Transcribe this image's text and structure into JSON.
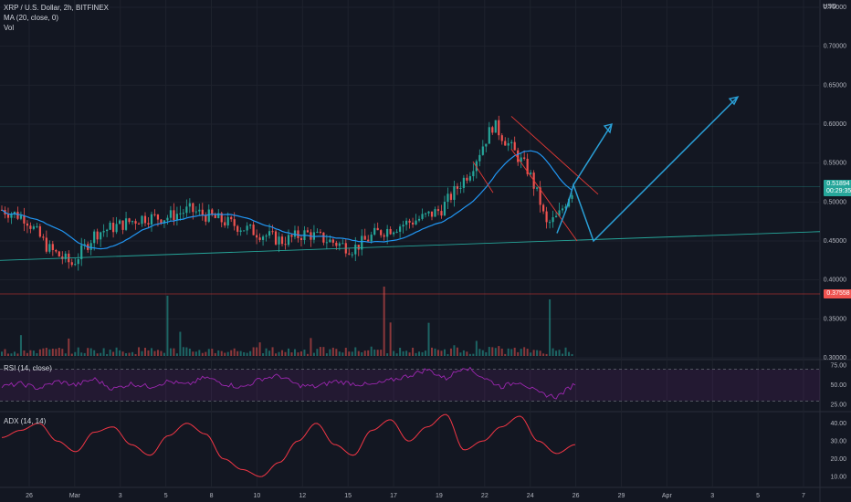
{
  "header": {
    "symbol_line": "XRP / U.S. Dollar, 2h, BITFINEX",
    "ma_line": "MA (20, close, 0)",
    "vol_line": "Vol",
    "rsi_line": "RSI (14, close)",
    "adx_line": "ADX (14, 14)",
    "currency": "USD"
  },
  "badges": {
    "last_price": "0.51894",
    "countdown": "00:29:35",
    "volume_scale": "0.37558"
  },
  "colors": {
    "background": "#131722",
    "up": "#26a69a",
    "down": "#ef5350",
    "ma": "#2196f3",
    "drawing": "#2a9fd6",
    "rsi": "#9c27b0",
    "adx": "#f23645",
    "channel": "#e53935",
    "trendline": "#26a69a"
  },
  "chart_data": [
    {
      "type": "candlestick",
      "title": "XRP / U.S. Dollar, 2h, BITFINEX",
      "ylim": [
        0.3,
        0.75
      ],
      "y_ticks": [
        "0.75000",
        "0.70000",
        "0.65000",
        "0.60000",
        "0.55000",
        "0.50000",
        "0.45000",
        "0.40000",
        "0.35000",
        "0.30000"
      ],
      "x_ticks": [
        "26",
        "Mar",
        "3",
        "5",
        "8",
        "10",
        "12",
        "15",
        "17",
        "19",
        "22",
        "24",
        "26",
        "29",
        "Apr",
        "3",
        "5",
        "7"
      ],
      "ma_period": 20,
      "path_points": [
        [
          0,
          0.49
        ],
        [
          4,
          0.48
        ],
        [
          8,
          0.44
        ],
        [
          12,
          0.42
        ],
        [
          16,
          0.46
        ],
        [
          20,
          0.47
        ],
        [
          24,
          0.48
        ],
        [
          28,
          0.48
        ],
        [
          32,
          0.49
        ],
        [
          36,
          0.48
        ],
        [
          40,
          0.47
        ],
        [
          44,
          0.46
        ],
        [
          48,
          0.45
        ],
        [
          52,
          0.46
        ],
        [
          56,
          0.45
        ],
        [
          60,
          0.44
        ],
        [
          64,
          0.46
        ],
        [
          68,
          0.47
        ],
        [
          72,
          0.48
        ],
        [
          75,
          0.49
        ],
        [
          78,
          0.52
        ],
        [
          80,
          0.54
        ],
        [
          82,
          0.57
        ],
        [
          84,
          0.6
        ],
        [
          86,
          0.58
        ],
        [
          88,
          0.56
        ],
        [
          90,
          0.54
        ],
        [
          92,
          0.5
        ],
        [
          93,
          0.47
        ],
        [
          95,
          0.48
        ],
        [
          97,
          0.51
        ],
        [
          98,
          0.52
        ]
      ],
      "last_price": 0.51894
    },
    {
      "type": "bar",
      "series": [
        {
          "values": [
            0.05,
            0.03,
            0.2,
            0.04,
            0.06,
            0.03,
            0.02,
            0.3,
            0.04,
            0.25
          ]
        }
      ]
    },
    {
      "type": "line",
      "ylim": [
        20,
        80
      ],
      "y_ticks": [
        "75.00",
        "50.00",
        "25.00"
      ],
      "levels": [
        70,
        30
      ],
      "series": [
        {
          "values": [
            48,
            52,
            46,
            55,
            50,
            58,
            45,
            52,
            48,
            55,
            50,
            60,
            52,
            47,
            58,
            62,
            50,
            48,
            55,
            52,
            50,
            56,
            62,
            70,
            58,
            74,
            60,
            48,
            55,
            40,
            35,
            52
          ]
        }
      ]
    },
    {
      "type": "line",
      "ylim": [
        5,
        45
      ],
      "y_ticks": [
        "40.00",
        "30.00",
        "20.00",
        "10.00"
      ],
      "series": [
        {
          "values": [
            32,
            36,
            40,
            30,
            24,
            35,
            38,
            28,
            22,
            33,
            40,
            34,
            20,
            14,
            10,
            18,
            30,
            40,
            28,
            22,
            36,
            42,
            30,
            38,
            45,
            25,
            30,
            38,
            44,
            30,
            23,
            28
          ]
        }
      ]
    }
  ]
}
